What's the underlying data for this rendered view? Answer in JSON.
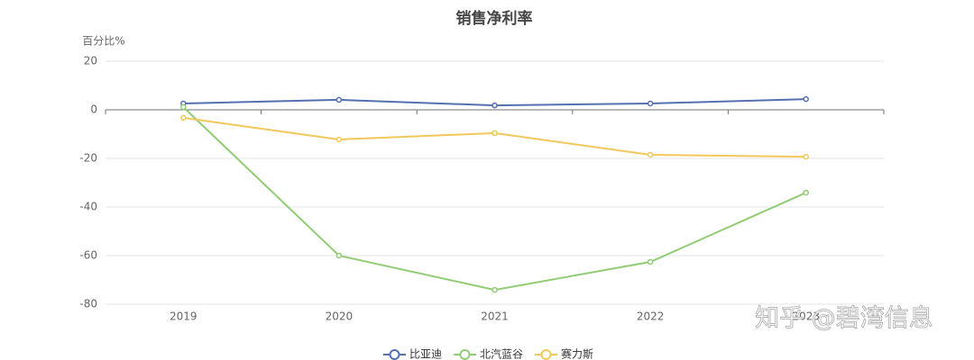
{
  "chart_data": {
    "type": "line",
    "title": "销售净利率",
    "y_axis_label": "百分比%",
    "categories": [
      "2019",
      "2020",
      "2021",
      "2022",
      "2023"
    ],
    "series": [
      {
        "name": "比亚迪",
        "color": "#5470b0",
        "values": [
          2.6,
          4.1,
          1.8,
          2.6,
          4.4
        ]
      },
      {
        "name": "北汽蓝谷",
        "color": "#91cc75",
        "values": [
          1.1,
          -60,
          -74.1,
          -62.6,
          -34.1
        ]
      },
      {
        "name": "赛力斯",
        "color": "#f2c85b",
        "values": [
          -3.3,
          -12.2,
          -9.6,
          -18.5,
          -19.3
        ]
      }
    ],
    "ylim": [
      -80,
      20
    ],
    "yticks": [
      -80,
      -60,
      -40,
      -20,
      0,
      20
    ],
    "grid": true
  },
  "watermark": "知乎 @碧湾信息"
}
